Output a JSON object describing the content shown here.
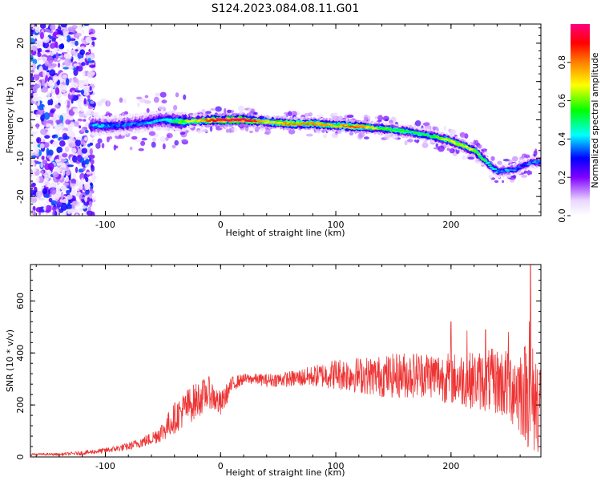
{
  "figure": {
    "title": "S124.2023.084.08.11.G01"
  },
  "chart_data": [
    {
      "type": "heatmap",
      "title": "",
      "xlabel": "Height of straight line (km)",
      "ylabel": "Frequency (Hz)",
      "xlim": [
        -165,
        278
      ],
      "ylim": [
        -25,
        25
      ],
      "x_ticks": [
        -100,
        0,
        100,
        200
      ],
      "x_tick_labels": [
        "-100",
        "0",
        "100",
        "200"
      ],
      "y_ticks": [
        -20,
        -10,
        0,
        10,
        20
      ],
      "y_tick_labels": [
        "-20",
        "-10",
        "0",
        "10",
        "20"
      ],
      "colorbar": {
        "label": "Normalized spectral amplitude",
        "range": [
          0,
          1
        ],
        "ticks": [
          0.0,
          0.2,
          0.4,
          0.6,
          0.8
        ],
        "tick_labels": [
          "0.0",
          "0.2",
          "0.4",
          "0.6",
          "0.8"
        ],
        "colors": [
          "#ffffff",
          "#8000ff",
          "#0000ff",
          "#00ffff",
          "#00ff00",
          "#ffff00",
          "#ff8000",
          "#ff0000",
          "#ff0080"
        ]
      },
      "ridge": {
        "x": [
          -110,
          -90,
          -70,
          -50,
          -35,
          -20,
          0,
          20,
          40,
          60,
          80,
          100,
          120,
          140,
          160,
          180,
          200,
          220,
          240,
          255,
          270,
          278
        ],
        "frequency": [
          -1.5,
          -1.5,
          -1,
          0,
          -0.5,
          -0.2,
          0,
          0,
          -0.5,
          -1,
          -1,
          -1.5,
          -1.8,
          -2.2,
          -3,
          -4,
          -5.5,
          -8,
          -13.5,
          -13,
          -11,
          -11
        ],
        "amplitude": [
          0.35,
          0.3,
          0.3,
          0.35,
          0.5,
          0.6,
          0.9,
          0.9,
          0.6,
          0.7,
          0.7,
          0.65,
          0.75,
          0.5,
          0.5,
          0.45,
          0.6,
          0.55,
          0.35,
          0.3,
          0.3,
          0.3
        ]
      },
      "noise_region": {
        "x": [
          -165,
          -110
        ],
        "frequency": [
          -25,
          25
        ],
        "amplitude": [
          0.05,
          0.3
        ]
      }
    },
    {
      "type": "line",
      "title": "",
      "xlabel": "Height of straight line (km)",
      "ylabel": "SNR (10 * v/v)",
      "xlim": [
        -165,
        278
      ],
      "ylim": [
        0,
        740
      ],
      "x_ticks": [
        -100,
        0,
        100,
        200
      ],
      "x_tick_labels": [
        "-100",
        "0",
        "100",
        "200"
      ],
      "y_ticks": [
        0,
        200,
        400,
        600
      ],
      "y_tick_labels": [
        "0",
        "200",
        "400",
        "600"
      ],
      "color": "#ee3333",
      "series": [
        {
          "x": [
            -165,
            -140,
            -120,
            -100,
            -80,
            -60,
            -50,
            -40,
            -30,
            -20,
            -10,
            0,
            10,
            20,
            30,
            40,
            60,
            80,
            100,
            120,
            140,
            160,
            180,
            200,
            220,
            240,
            255,
            265,
            270,
            278
          ],
          "y": [
            10,
            10,
            15,
            25,
            40,
            70,
            100,
            150,
            190,
            220,
            250,
            200,
            280,
            300,
            300,
            295,
            300,
            310,
            320,
            315,
            310,
            315,
            320,
            300,
            295,
            290,
            270,
            250,
            220,
            210
          ],
          "spread": [
            5,
            5,
            8,
            10,
            15,
            25,
            40,
            60,
            70,
            70,
            60,
            50,
            30,
            20,
            20,
            25,
            30,
            40,
            60,
            70,
            80,
            90,
            90,
            100,
            110,
            130,
            160,
            200,
            220,
            200
          ],
          "peaks": [
            [
              269,
              740
            ],
            [
              268,
              520
            ],
            [
              230,
              490
            ],
            [
              200,
              520
            ],
            [
              214,
              485
            ],
            [
              250,
              480
            ]
          ]
        }
      ]
    }
  ]
}
